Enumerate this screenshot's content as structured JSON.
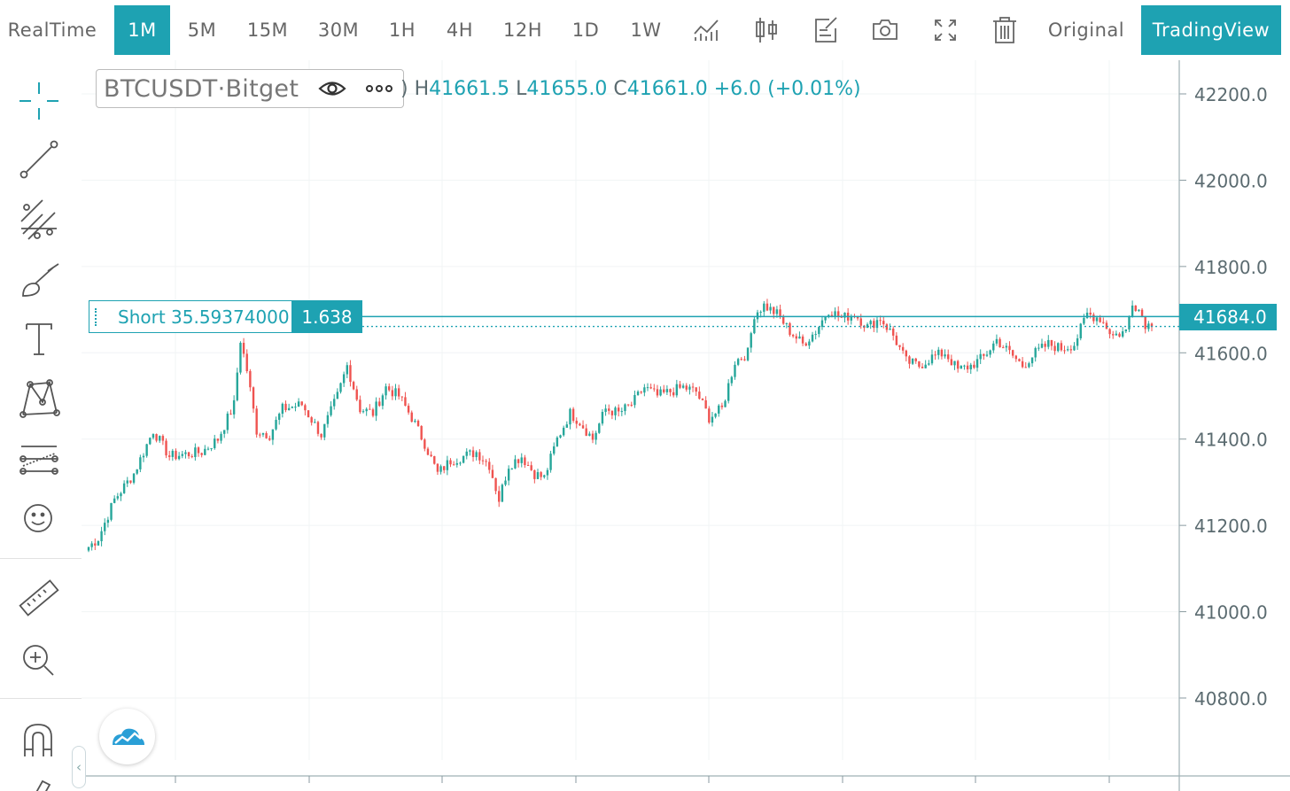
{
  "toolbar": {
    "realtime": "RealTime",
    "intervals": [
      "1M",
      "5M",
      "15M",
      "30M",
      "1H",
      "4H",
      "12H",
      "1D",
      "1W"
    ],
    "active_interval": "1M",
    "icons": [
      "indicators-icon",
      "chart-type-icon",
      "edit-note-icon",
      "camera-icon",
      "fullscreen-icon",
      "trash-icon"
    ],
    "original_label": "Original",
    "tradingview_label": "TradingView",
    "accent_color": "#1ea2b2"
  },
  "left_tools": [
    "crosshair-icon",
    "trend-line-icon",
    "pitchfork-icon",
    "brush-icon",
    "text-icon",
    "pattern-icon",
    "forecast-icon",
    "emoji-icon",
    "ruler-icon",
    "zoom-in-icon",
    "magnet-icon",
    "pencil-icon"
  ],
  "legend": {
    "symbol": "BTCUSDT",
    "separator": " · ",
    "exchange": "Bitget",
    "open_fragment": ")",
    "high_label": "H",
    "high": "41661.5",
    "low_label": "L",
    "low": "41655.0",
    "close_label": "C",
    "close": "41661.0",
    "change": "+6.0 (+0.01%)"
  },
  "position": {
    "label": "Short 35.59374000",
    "quantity": "1.638",
    "price": 41684.0
  },
  "last_price": "41684.0",
  "chart_data": {
    "type": "candlestick",
    "symbol": "BTCUSDT",
    "interval": "1M",
    "y_axis_ticks": [
      "42200.0",
      "42000.0",
      "41800.0",
      "41600.0",
      "41400.0",
      "41200.0",
      "41000.0",
      "40800.0"
    ],
    "ylim": [
      40650,
      42240
    ],
    "position_line_price": 41684.0,
    "current_close": 41661.0,
    "up_color": "#26a69a",
    "down_color": "#ef5350",
    "price_path": [
      [
        0,
        41150
      ],
      [
        3,
        41170
      ],
      [
        8,
        41260
      ],
      [
        14,
        41320
      ],
      [
        20,
        41420
      ],
      [
        25,
        41360
      ],
      [
        35,
        41370
      ],
      [
        40,
        41400
      ],
      [
        45,
        41480
      ],
      [
        47,
        41630
      ],
      [
        49,
        41560
      ],
      [
        52,
        41420
      ],
      [
        56,
        41410
      ],
      [
        60,
        41470
      ],
      [
        66,
        41480
      ],
      [
        72,
        41410
      ],
      [
        77,
        41500
      ],
      [
        80,
        41570
      ],
      [
        84,
        41470
      ],
      [
        88,
        41460
      ],
      [
        92,
        41520
      ],
      [
        96,
        41500
      ],
      [
        100,
        41450
      ],
      [
        104,
        41390
      ],
      [
        108,
        41320
      ],
      [
        112,
        41350
      ],
      [
        116,
        41360
      ],
      [
        120,
        41370
      ],
      [
        124,
        41340
      ],
      [
        127,
        41260
      ],
      [
        130,
        41340
      ],
      [
        134,
        41360
      ],
      [
        138,
        41320
      ],
      [
        141,
        41310
      ],
      [
        145,
        41400
      ],
      [
        149,
        41460
      ],
      [
        152,
        41440
      ],
      [
        156,
        41400
      ],
      [
        160,
        41470
      ],
      [
        164,
        41460
      ],
      [
        168,
        41480
      ],
      [
        172,
        41520
      ],
      [
        176,
        41500
      ],
      [
        180,
        41510
      ],
      [
        184,
        41520
      ],
      [
        188,
        41510
      ],
      [
        192,
        41450
      ],
      [
        196,
        41470
      ],
      [
        200,
        41580
      ],
      [
        204,
        41600
      ],
      [
        206,
        41690
      ],
      [
        209,
        41710
      ],
      [
        213,
        41690
      ],
      [
        217,
        41650
      ],
      [
        221,
        41620
      ],
      [
        225,
        41650
      ],
      [
        229,
        41700
      ],
      [
        233,
        41680
      ],
      [
        237,
        41690
      ],
      [
        241,
        41660
      ],
      [
        245,
        41680
      ],
      [
        249,
        41640
      ],
      [
        253,
        41580
      ],
      [
        257,
        41570
      ],
      [
        261,
        41590
      ],
      [
        265,
        41600
      ],
      [
        269,
        41560
      ],
      [
        273,
        41570
      ],
      [
        277,
        41590
      ],
      [
        281,
        41630
      ],
      [
        285,
        41600
      ],
      [
        289,
        41570
      ],
      [
        293,
        41600
      ],
      [
        297,
        41620
      ],
      [
        301,
        41610
      ],
      [
        305,
        41620
      ],
      [
        309,
        41690
      ],
      [
        313,
        41680
      ],
      [
        317,
        41640
      ],
      [
        321,
        41650
      ],
      [
        323,
        41720
      ],
      [
        325,
        41700
      ],
      [
        327,
        41668
      ],
      [
        329,
        41661
      ]
    ]
  }
}
